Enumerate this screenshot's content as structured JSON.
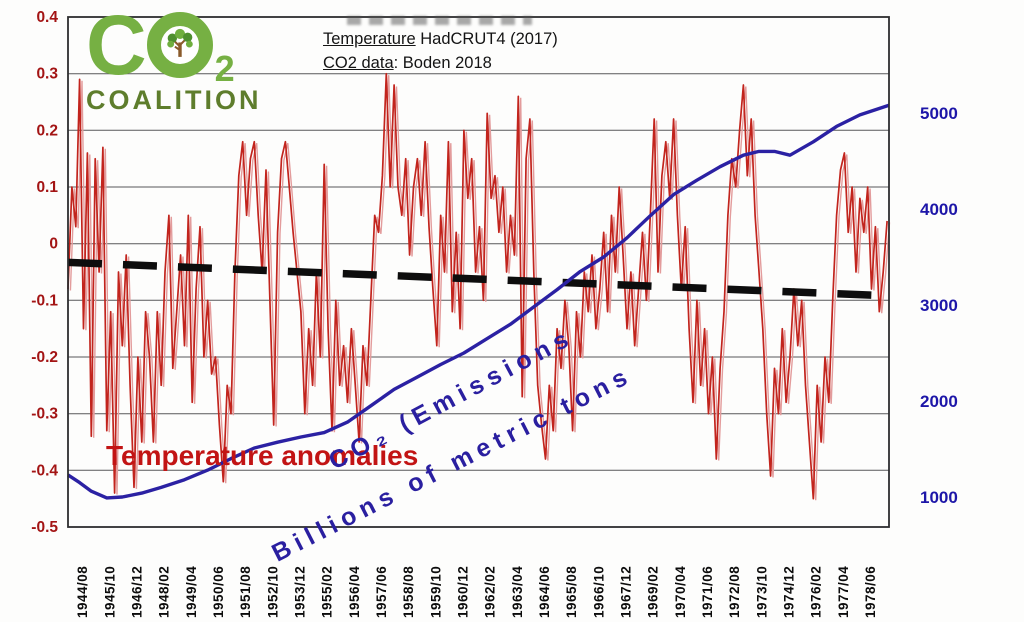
{
  "logo": {
    "c": "C",
    "sub": "2",
    "coalition": "COALITION",
    "color_main": "#76b043",
    "color_dark": "#5e7d2c"
  },
  "annotation": {
    "line1_underlined": "Temperature",
    "line1_rest": " HadCRUT4 (2017)",
    "line2_underlined": "CO2 data",
    "line2_rest": ": Boden 2018"
  },
  "chart_labels": {
    "temp_label": "Temperature anomalies",
    "co2_label_line1": "CO₂ (Emissions",
    "co2_label_line2": "Billions of metric tons"
  },
  "chart_data": {
    "type": "line",
    "title": "",
    "grid": true,
    "x_axis": {
      "first_month": "1944/01",
      "total_months": 423,
      "tick_start_month": 7,
      "tick_step_months": 14,
      "tick_labels": [
        "1944/08",
        "1945/10",
        "1946/12",
        "1948/02",
        "1949/04",
        "1950/06",
        "1951/08",
        "1952/10",
        "1953/12",
        "1955/02",
        "1956/04",
        "1957/06",
        "1958/08",
        "1959/10",
        "1960/12",
        "1962/02",
        "1963/04",
        "1964/06",
        "1965/08",
        "1966/10",
        "1967/12",
        "1969/02",
        "1970/04",
        "1971/06",
        "1972/08",
        "1973/10",
        "1974/12",
        "1976/02",
        "1977/04",
        "1978/06"
      ]
    },
    "y_left": {
      "label_color": "#a31414",
      "min": -0.5,
      "max": 0.4,
      "ticks": [
        {
          "value": 0.4,
          "label": "0.4"
        },
        {
          "value": 0.3,
          "label": "0.3"
        },
        {
          "value": 0.2,
          "label": "0.2"
        },
        {
          "value": 0.1,
          "label": "0.1"
        },
        {
          "value": 0.0,
          "label": "0"
        },
        {
          "value": -0.1,
          "label": "-0.1"
        },
        {
          "value": -0.2,
          "label": "-0.2"
        },
        {
          "value": -0.3,
          "label": "-0.3"
        },
        {
          "value": -0.4,
          "label": "-0.4"
        },
        {
          "value": -0.5,
          "label": "-0.5"
        }
      ]
    },
    "y_right": {
      "label_color": "#1d16a8",
      "min": 687,
      "max": 6000,
      "ticks": [
        {
          "value": 5000,
          "label": "5000"
        },
        {
          "value": 4000,
          "label": "4000"
        },
        {
          "value": 3000,
          "label": "3000"
        },
        {
          "value": 2000,
          "label": "2000"
        },
        {
          "value": 1000,
          "label": "1000"
        }
      ]
    },
    "series": [
      {
        "id": "temperature-anomalies",
        "name": "Temperature anomalies",
        "axis": "left",
        "color": "#c2241d",
        "halo": "#e39c9c",
        "width": 1.7,
        "start_month": 0,
        "step_months": 2,
        "values": [
          -0.08,
          0.1,
          0.03,
          0.29,
          -0.15,
          0.16,
          -0.34,
          0.15,
          -0.05,
          0.17,
          -0.33,
          -0.12,
          -0.44,
          -0.05,
          -0.18,
          -0.02,
          -0.25,
          -0.43,
          -0.2,
          -0.35,
          -0.12,
          -0.2,
          -0.35,
          -0.12,
          -0.25,
          -0.05,
          0.05,
          -0.22,
          -0.12,
          -0.02,
          -0.18,
          0.05,
          -0.28,
          -0.08,
          0.03,
          -0.2,
          -0.1,
          -0.23,
          -0.2,
          -0.32,
          -0.42,
          -0.25,
          -0.3,
          -0.05,
          0.12,
          0.18,
          0.05,
          0.15,
          0.18,
          0.05,
          -0.05,
          0.13,
          -0.1,
          -0.32,
          0.02,
          0.15,
          0.18,
          0.1,
          0.02,
          -0.05,
          -0.12,
          -0.3,
          -0.15,
          -0.25,
          -0.05,
          -0.2,
          0.14,
          -0.15,
          -0.33,
          -0.1,
          -0.25,
          -0.18,
          -0.28,
          -0.15,
          -0.25,
          -0.35,
          -0.18,
          -0.25,
          -0.1,
          0.05,
          0.02,
          0.12,
          0.3,
          0.1,
          0.28,
          0.1,
          0.05,
          0.15,
          -0.02,
          0.1,
          0.15,
          0.05,
          0.18,
          0.03,
          -0.08,
          -0.18,
          0.05,
          -0.05,
          0.18,
          -0.12,
          0.02,
          -0.15,
          0.2,
          0.08,
          0.15,
          -0.05,
          0.03,
          -0.1,
          0.23,
          0.08,
          0.12,
          0.02,
          0.1,
          -0.05,
          0.05,
          -0.02,
          0.26,
          -0.27,
          0.15,
          0.22,
          -0.05,
          -0.25,
          -0.32,
          -0.38,
          -0.25,
          -0.33,
          -0.15,
          -0.22,
          -0.1,
          -0.18,
          -0.33,
          -0.12,
          -0.2,
          -0.05,
          -0.12,
          -0.02,
          -0.15,
          -0.08,
          0.02,
          -0.12,
          0.05,
          -0.05,
          0.1,
          -0.02,
          -0.15,
          -0.05,
          -0.18,
          -0.08,
          0.02,
          -0.1,
          0.05,
          0.22,
          -0.05,
          0.12,
          0.18,
          0.08,
          0.22,
          0.05,
          -0.08,
          0.03,
          -0.15,
          -0.28,
          -0.1,
          -0.25,
          -0.15,
          -0.3,
          -0.2,
          -0.38,
          -0.22,
          -0.12,
          0.05,
          0.15,
          0.1,
          0.2,
          0.28,
          0.12,
          0.22,
          0.05,
          -0.05,
          -0.15,
          -0.3,
          -0.41,
          -0.22,
          -0.3,
          -0.15,
          -0.28,
          -0.2,
          -0.08,
          -0.18,
          -0.1,
          -0.25,
          -0.35,
          -0.45,
          -0.25,
          -0.35,
          -0.2,
          -0.28,
          -0.1,
          0.05,
          0.13,
          0.16,
          0.02,
          0.1,
          -0.05,
          0.08,
          0.02,
          0.1,
          -0.08,
          0.03,
          -0.12,
          -0.05,
          0.04
        ]
      },
      {
        "id": "trend-line",
        "name": "Temperature trend",
        "axis": "left",
        "color": "#0d0d0d",
        "width": 7.5,
        "dash": "34 21",
        "points": [
          [
            0,
            -0.033
          ],
          [
            423,
            -0.092
          ]
        ]
      },
      {
        "id": "co2-emissions",
        "name": "CO₂ Emissions (Billions of metric tons)",
        "axis": "right",
        "color": "#2b21a3",
        "width": 3.4,
        "points": [
          [
            0,
            1230
          ],
          [
            6,
            1150
          ],
          [
            12,
            1060
          ],
          [
            20,
            990
          ],
          [
            28,
            1000
          ],
          [
            38,
            1040
          ],
          [
            48,
            1100
          ],
          [
            60,
            1180
          ],
          [
            72,
            1280
          ],
          [
            84,
            1400
          ],
          [
            96,
            1510
          ],
          [
            108,
            1570
          ],
          [
            120,
            1625
          ],
          [
            132,
            1670
          ],
          [
            144,
            1780
          ],
          [
            156,
            1950
          ],
          [
            168,
            2120
          ],
          [
            180,
            2250
          ],
          [
            192,
            2380
          ],
          [
            204,
            2500
          ],
          [
            216,
            2650
          ],
          [
            228,
            2800
          ],
          [
            240,
            2980
          ],
          [
            252,
            3160
          ],
          [
            264,
            3350
          ],
          [
            276,
            3500
          ],
          [
            288,
            3700
          ],
          [
            300,
            3930
          ],
          [
            312,
            4150
          ],
          [
            324,
            4300
          ],
          [
            336,
            4440
          ],
          [
            348,
            4560
          ],
          [
            356,
            4600
          ],
          [
            364,
            4600
          ],
          [
            372,
            4560
          ],
          [
            384,
            4700
          ],
          [
            396,
            4860
          ],
          [
            408,
            4980
          ],
          [
            423,
            5080
          ]
        ]
      }
    ]
  }
}
